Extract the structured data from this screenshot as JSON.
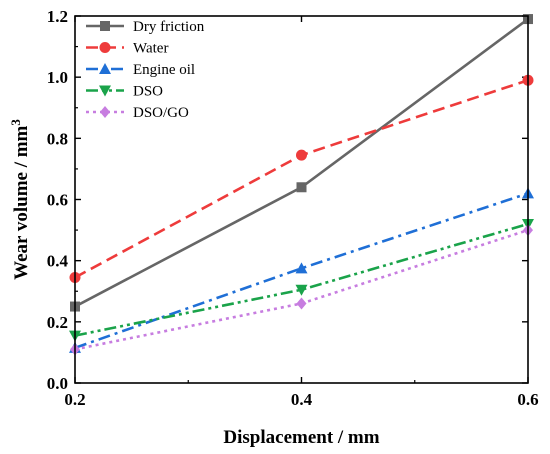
{
  "chart_data": {
    "type": "line",
    "xlabel": "Displacement / mm",
    "ylabel": "Wear volume / mm",
    "ylabel_superscript": "3",
    "x": [
      0.2,
      0.4,
      0.6
    ],
    "xlim": [
      0.2,
      0.6
    ],
    "ylim": [
      0.0,
      1.2
    ],
    "xticks": [
      "0.2",
      "0.4",
      "0.6"
    ],
    "yticks": [
      "0.0",
      "0.2",
      "0.4",
      "0.6",
      "0.8",
      "1.0",
      "1.2"
    ],
    "legend_position": "top-left",
    "grid": false,
    "series": [
      {
        "name": "Dry friction",
        "values": [
          0.25,
          0.64,
          1.19
        ],
        "color": "#666666",
        "dash": "solid",
        "marker": "square"
      },
      {
        "name": "Water",
        "values": [
          0.345,
          0.745,
          0.99
        ],
        "color": "#ee3b3b",
        "dash": "dash",
        "marker": "circle"
      },
      {
        "name": "Engine oil",
        "values": [
          0.115,
          0.375,
          0.62
        ],
        "color": "#1f6fd6",
        "dash": "dashdot",
        "marker": "triangle-up"
      },
      {
        "name": "DSO",
        "values": [
          0.155,
          0.305,
          0.52
        ],
        "color": "#1aa34a",
        "dash": "dashdotdot",
        "marker": "triangle-down"
      },
      {
        "name": "DSO/GO",
        "values": [
          0.11,
          0.26,
          0.5
        ],
        "color": "#c77de0",
        "dash": "dot",
        "marker": "diamond"
      }
    ]
  }
}
